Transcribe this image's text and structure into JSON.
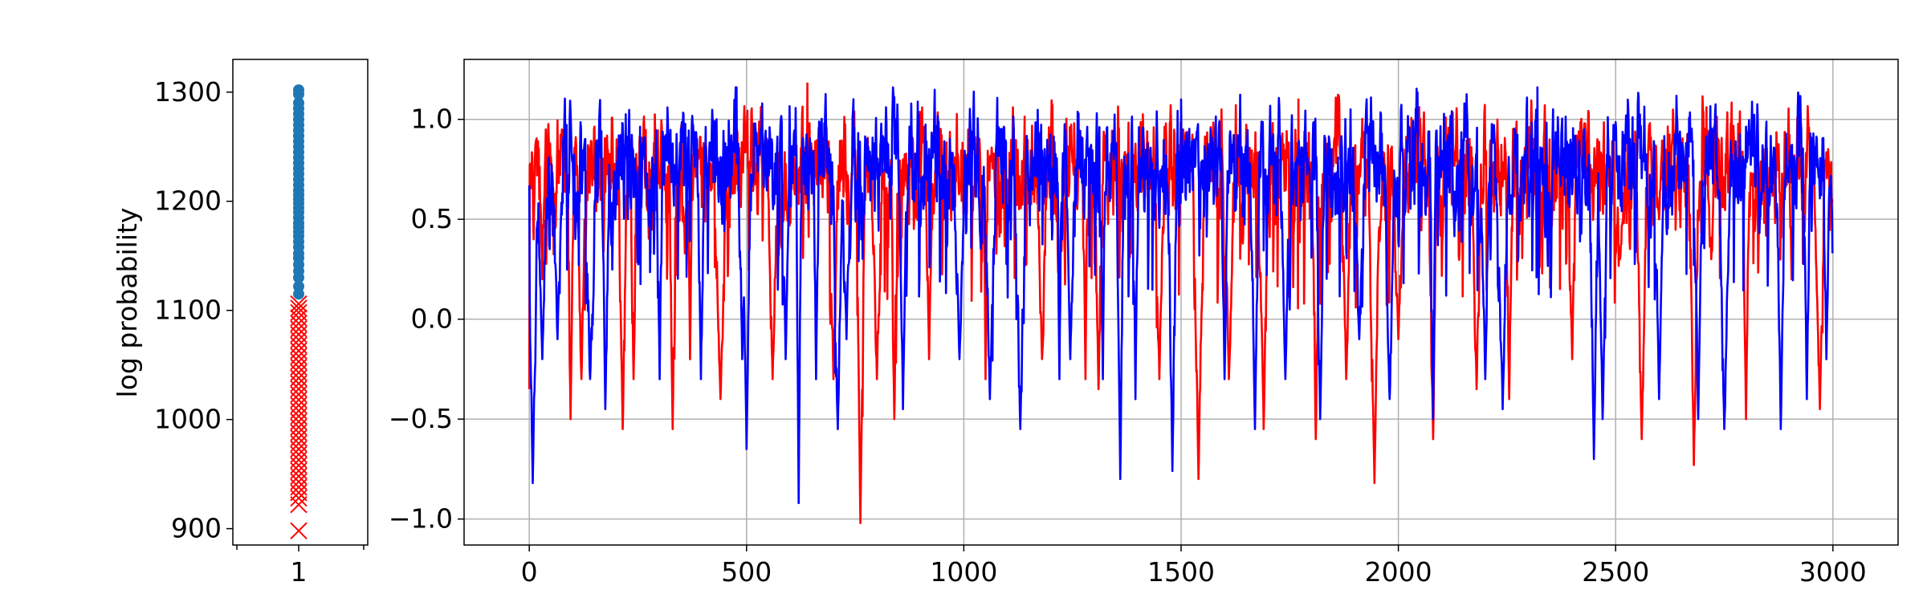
{
  "chart_data": [
    {
      "type": "scatter",
      "ylabel": "log probability",
      "xlabel": "",
      "x_ticks": [
        "1"
      ],
      "ylim": [
        885,
        1330
      ],
      "y_ticks": [
        "900",
        "1000",
        "1100",
        "1200",
        "1300"
      ],
      "grid": false,
      "series": [
        {
          "marker": "circle",
          "color": "#1f77b4",
          "x": 1,
          "values": [
            1115,
            1122,
            1130,
            1136,
            1142,
            1148,
            1152,
            1158,
            1163,
            1168,
            1172,
            1176,
            1180,
            1185,
            1190,
            1194,
            1198,
            1202,
            1206,
            1210,
            1215,
            1220,
            1225,
            1230,
            1235,
            1240,
            1245,
            1250,
            1255,
            1260,
            1265,
            1270,
            1275,
            1280,
            1285,
            1290,
            1298,
            1302
          ]
        },
        {
          "marker": "x",
          "color": "#ff0000",
          "x": 1,
          "values": [
            898,
            922,
            928,
            933,
            938,
            943,
            948,
            953,
            958,
            963,
            968,
            973,
            978,
            983,
            988,
            993,
            998,
            1003,
            1008,
            1013,
            1018,
            1023,
            1028,
            1033,
            1038,
            1043,
            1048,
            1053,
            1058,
            1063,
            1068,
            1073,
            1078,
            1083,
            1088,
            1093,
            1098,
            1102,
            1106
          ]
        }
      ]
    },
    {
      "type": "line",
      "xlabel": "",
      "ylabel": "",
      "xlim": [
        -150,
        3150
      ],
      "ylim": [
        -1.13,
        1.3
      ],
      "x_ticks": [
        "0",
        "500",
        "1000",
        "1500",
        "2000",
        "2500",
        "3000"
      ],
      "y_ticks": [
        "1.0",
        "0.5",
        "0.0",
        "−0.5",
        "−1.0"
      ],
      "grid": true,
      "series_length": 3000,
      "series": [
        {
          "color": "#ff0000",
          "summary": {
            "min": -1.02,
            "max": 1.18,
            "typical_range": [
              0.5,
              1.0
            ]
          },
          "dips": [
            [
              30,
              0.2
            ],
            [
              95,
              -0.5
            ],
            [
              120,
              -0.3
            ],
            [
              215,
              -0.55
            ],
            [
              240,
              -0.3
            ],
            [
              330,
              -0.55
            ],
            [
              370,
              -0.2
            ],
            [
              440,
              -0.4
            ],
            [
              560,
              -0.3
            ],
            [
              640,
              1.18
            ],
            [
              700,
              -0.3
            ],
            [
              762,
              -1.02
            ],
            [
              800,
              -0.3
            ],
            [
              840,
              -0.5
            ],
            [
              920,
              -0.2
            ],
            [
              1050,
              -0.3
            ],
            [
              1180,
              -0.2
            ],
            [
              1220,
              0.1
            ],
            [
              1280,
              -0.3
            ],
            [
              1310,
              -0.35
            ],
            [
              1450,
              -0.3
            ],
            [
              1540,
              -0.8
            ],
            [
              1610,
              -0.3
            ],
            [
              1690,
              -0.55
            ],
            [
              1770,
              1.1
            ],
            [
              1810,
              -0.6
            ],
            [
              1880,
              -0.3
            ],
            [
              1945,
              -0.82
            ],
            [
              2000,
              -0.1
            ],
            [
              2080,
              -0.6
            ],
            [
              2180,
              -0.35
            ],
            [
              2255,
              -0.4
            ],
            [
              2400,
              -0.2
            ],
            [
              2510,
              0.3
            ],
            [
              2560,
              -0.6
            ],
            [
              2600,
              0.5
            ],
            [
              2680,
              -0.73
            ],
            [
              2720,
              0.3
            ],
            [
              2800,
              -0.5
            ],
            [
              2905,
              0.2
            ],
            [
              2970,
              -0.45
            ]
          ]
        },
        {
          "color": "#0000ff",
          "summary": {
            "min": -0.93,
            "max": 1.16,
            "typical_range": [
              0.55,
              1.0
            ]
          },
          "dips": [
            [
              8,
              -0.82
            ],
            [
              30,
              -0.2
            ],
            [
              65,
              -0.1
            ],
            [
              140,
              -0.3
            ],
            [
              175,
              -0.45
            ],
            [
              300,
              -0.3
            ],
            [
              395,
              -0.3
            ],
            [
              490,
              -0.2
            ],
            [
              500,
              -0.65
            ],
            [
              590,
              -0.2
            ],
            [
              620,
              -0.92
            ],
            [
              660,
              -0.3
            ],
            [
              710,
              -0.55
            ],
            [
              730,
              -0.1
            ],
            [
              860,
              -0.45
            ],
            [
              990,
              -0.2
            ],
            [
              1060,
              -0.4
            ],
            [
              1130,
              -0.55
            ],
            [
              1220,
              -0.3
            ],
            [
              1245,
              -0.2
            ],
            [
              1320,
              -0.3
            ],
            [
              1360,
              -0.8
            ],
            [
              1395,
              -0.4
            ],
            [
              1480,
              -0.76
            ],
            [
              1500,
              1.1
            ],
            [
              1600,
              -0.3
            ],
            [
              1670,
              -0.55
            ],
            [
              1740,
              -0.3
            ],
            [
              1820,
              -0.5
            ],
            [
              1910,
              -0.1
            ],
            [
              1980,
              -0.4
            ],
            [
              2080,
              -0.5
            ],
            [
              2200,
              -0.3
            ],
            [
              2240,
              -0.45
            ],
            [
              2320,
              1.16
            ],
            [
              2450,
              -0.7
            ],
            [
              2470,
              -0.5
            ],
            [
              2600,
              -0.4
            ],
            [
              2690,
              -0.5
            ],
            [
              2750,
              -0.55
            ],
            [
              2880,
              -0.55
            ],
            [
              2940,
              -0.4
            ],
            [
              2985,
              -0.2
            ]
          ]
        }
      ]
    }
  ]
}
